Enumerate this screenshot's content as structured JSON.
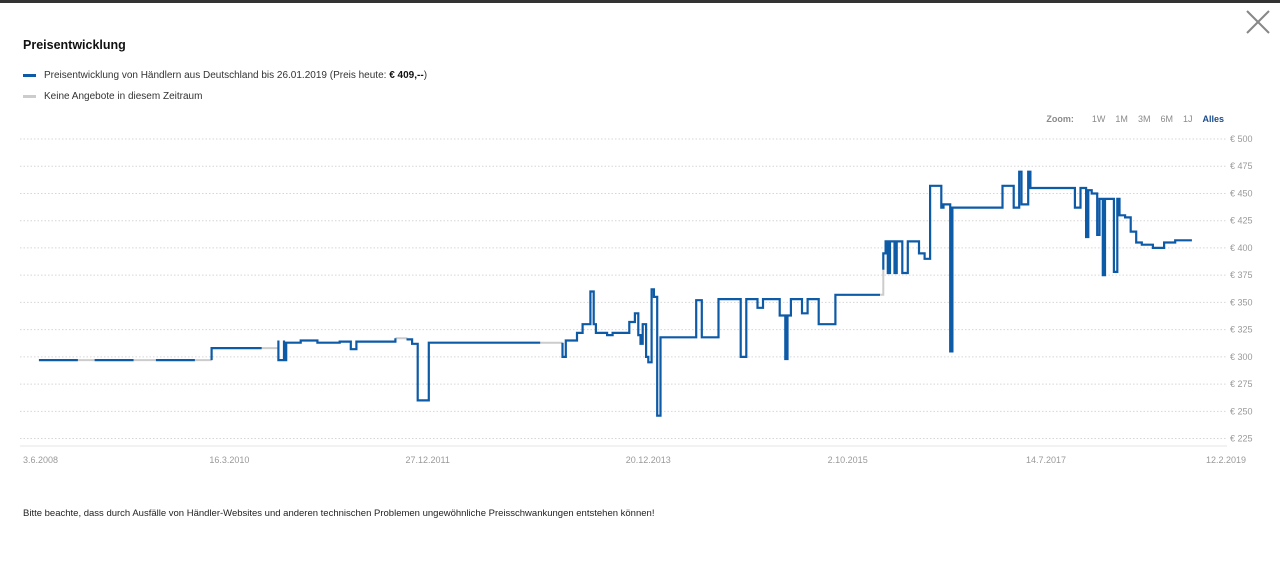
{
  "title": "Preisentwicklung",
  "legend": {
    "series_label": "Preisentwicklung von Händlern aus Deutschland bis 26.01.2019 (Preis heute: ",
    "price_today": "€ 409,--",
    "series_suffix": ")",
    "gap_label": "Keine Angebote in diesem Zeitraum",
    "series_color": "#0d5aa7",
    "gap_color": "#cccccc"
  },
  "zoom": {
    "label": "Zoom:",
    "options": [
      "1W",
      "1M",
      "3M",
      "6M",
      "1J",
      "Alles"
    ],
    "active": "Alles"
  },
  "note": "Bitte beachte, dass durch Ausfälle von Händler-Websites und anderen technischen Problemen ungewöhnliche Preisschwankungen entstehen können!",
  "chart_data": {
    "type": "line",
    "y_tick_labels": [
      "€ 225",
      "€ 250",
      "€ 275",
      "€ 300",
      "€ 325",
      "€ 350",
      "€ 375",
      "€ 400",
      "€ 425",
      "€ 450",
      "€ 475",
      "€ 500"
    ],
    "y_ticks": [
      225,
      250,
      275,
      300,
      325,
      350,
      375,
      400,
      425,
      450,
      475,
      500
    ],
    "ylim": [
      220,
      500
    ],
    "x_tick_labels": [
      "3.6.2008",
      "16.3.2010",
      "27.12.2011",
      "20.12.2013",
      "2.10.2015",
      "14.7.2017",
      "12.2.2019"
    ],
    "x_ticks": [
      2008.42,
      2010.21,
      2011.99,
      2013.97,
      2015.76,
      2017.54,
      2019.12
    ],
    "xlim": [
      2008.42,
      2019.12
    ],
    "grid": true,
    "series": [
      {
        "name": "Preisentwicklung von Händlern aus Deutschland bis 26.01.2019",
        "color": "#0d5aa7",
        "segments": [
          [
            [
              2008.5,
              297
            ],
            [
              2008.85,
              297
            ]
          ],
          [
            [
              2009.0,
              297
            ],
            [
              2009.35,
              297
            ]
          ],
          [
            [
              2009.55,
              297
            ],
            [
              2009.9,
              297
            ]
          ],
          [
            [
              2010.05,
              305
            ],
            [
              2010.05,
              297
            ],
            [
              2010.05,
              308
            ],
            [
              2010.5,
              308
            ]
          ],
          [
            [
              2010.65,
              315
            ],
            [
              2010.65,
              297
            ],
            [
              2010.7,
              315
            ],
            [
              2010.7,
              297
            ],
            [
              2010.72,
              313
            ],
            [
              2010.85,
              313
            ],
            [
              2010.85,
              315
            ],
            [
              2011.0,
              313
            ],
            [
              2011.2,
              314
            ],
            [
              2011.3,
              314
            ],
            [
              2011.3,
              307
            ],
            [
              2011.35,
              314
            ],
            [
              2011.6,
              314
            ],
            [
              2011.7,
              317
            ]
          ],
          [
            [
              2011.8,
              316
            ],
            [
              2011.85,
              312
            ],
            [
              2011.9,
              312
            ],
            [
              2011.9,
              260
            ],
            [
              2012.0,
              260
            ],
            [
              2012.0,
              313
            ],
            [
              2012.6,
              313
            ],
            [
              2013.0,
              313
            ]
          ],
          [
            [
              2013.2,
              313
            ],
            [
              2013.2,
              300
            ],
            [
              2013.23,
              315
            ],
            [
              2013.33,
              315
            ],
            [
              2013.33,
              322
            ],
            [
              2013.38,
              322
            ],
            [
              2013.38,
              330
            ],
            [
              2013.45,
              330
            ],
            [
              2013.45,
              360
            ],
            [
              2013.48,
              330
            ],
            [
              2013.5,
              322
            ],
            [
              2013.6,
              322
            ],
            [
              2013.6,
              320
            ],
            [
              2013.65,
              322
            ],
            [
              2013.8,
              322
            ],
            [
              2013.8,
              332
            ],
            [
              2013.85,
              332
            ],
            [
              2013.85,
              340
            ],
            [
              2013.88,
              320
            ],
            [
              2013.9,
              312
            ],
            [
              2013.92,
              330
            ],
            [
              2013.95,
              300
            ],
            [
              2013.97,
              295
            ],
            [
              2014.0,
              300
            ],
            [
              2014.0,
              362
            ],
            [
              2014.02,
              355
            ],
            [
              2014.05,
              340
            ],
            [
              2014.05,
              246
            ],
            [
              2014.08,
              318
            ],
            [
              2014.4,
              318
            ],
            [
              2014.4,
              352
            ],
            [
              2014.45,
              318
            ],
            [
              2014.6,
              318
            ],
            [
              2014.6,
              353
            ],
            [
              2014.65,
              353
            ],
            [
              2014.8,
              353
            ],
            [
              2014.8,
              300
            ],
            [
              2014.85,
              353
            ],
            [
              2014.95,
              353
            ],
            [
              2014.95,
              345
            ],
            [
              2015.0,
              353
            ],
            [
              2015.15,
              353
            ],
            [
              2015.15,
              338
            ],
            [
              2015.2,
              338
            ],
            [
              2015.2,
              298
            ],
            [
              2015.22,
              338
            ],
            [
              2015.25,
              353
            ],
            [
              2015.35,
              353
            ],
            [
              2015.35,
              340
            ],
            [
              2015.4,
              353
            ],
            [
              2015.5,
              353
            ],
            [
              2015.5,
              330
            ],
            [
              2015.65,
              330
            ],
            [
              2015.65,
              357
            ],
            [
              2016.05,
              357
            ]
          ],
          [
            [
              2016.08,
              380
            ],
            [
              2016.08,
              395
            ],
            [
              2016.1,
              406
            ],
            [
              2016.12,
              377
            ],
            [
              2016.14,
              406
            ],
            [
              2016.18,
              377
            ],
            [
              2016.2,
              406
            ],
            [
              2016.25,
              377
            ],
            [
              2016.3,
              377
            ],
            [
              2016.3,
              406
            ],
            [
              2016.4,
              406
            ],
            [
              2016.4,
              395
            ],
            [
              2016.45,
              390
            ],
            [
              2016.5,
              457
            ],
            [
              2016.6,
              457
            ],
            [
              2016.6,
              437
            ],
            [
              2016.62,
              440
            ],
            [
              2016.68,
              305
            ],
            [
              2016.7,
              437
            ],
            [
              2016.9,
              437
            ],
            [
              2016.9,
              437
            ],
            [
              2017.1,
              437
            ],
            [
              2017.1,
              437
            ],
            [
              2017.15,
              457
            ],
            [
              2017.25,
              437
            ],
            [
              2017.3,
              470
            ],
            [
              2017.32,
              440
            ],
            [
              2017.38,
              470
            ],
            [
              2017.4,
              455
            ],
            [
              2017.55,
              455
            ],
            [
              2017.7,
              455
            ],
            [
              2017.8,
              455
            ],
            [
              2017.8,
              437
            ],
            [
              2017.85,
              455
            ],
            [
              2017.88,
              455
            ],
            [
              2017.9,
              410
            ],
            [
              2017.92,
              453
            ],
            [
              2017.95,
              450
            ],
            [
              2018.0,
              440
            ],
            [
              2018.0,
              412
            ],
            [
              2018.02,
              445
            ],
            [
              2018.05,
              375
            ],
            [
              2018.07,
              445
            ],
            [
              2018.15,
              445
            ],
            [
              2018.15,
              378
            ],
            [
              2018.18,
              445
            ],
            [
              2018.2,
              430
            ],
            [
              2018.25,
              428
            ],
            [
              2018.3,
              415
            ],
            [
              2018.35,
              405
            ],
            [
              2018.4,
              403
            ],
            [
              2018.5,
              400
            ],
            [
              2018.6,
              400
            ],
            [
              2018.6,
              405
            ],
            [
              2018.7,
              407
            ],
            [
              2018.85,
              407
            ]
          ]
        ]
      },
      {
        "name": "Keine Angebote in diesem Zeitraum",
        "color": "#cccccc",
        "segments": [
          [
            [
              2008.85,
              297
            ],
            [
              2009.0,
              297
            ]
          ],
          [
            [
              2009.35,
              297
            ],
            [
              2009.55,
              297
            ]
          ],
          [
            [
              2009.9,
              297
            ],
            [
              2010.05,
              297
            ]
          ],
          [
            [
              2010.5,
              308
            ],
            [
              2010.65,
              308
            ]
          ],
          [
            [
              2011.7,
              317
            ],
            [
              2011.8,
              316
            ]
          ],
          [
            [
              2013.0,
              313
            ],
            [
              2013.2,
              313
            ]
          ],
          [
            [
              2016.05,
              357
            ],
            [
              2016.08,
              370
            ],
            [
              2016.08,
              380
            ]
          ]
        ]
      }
    ]
  }
}
